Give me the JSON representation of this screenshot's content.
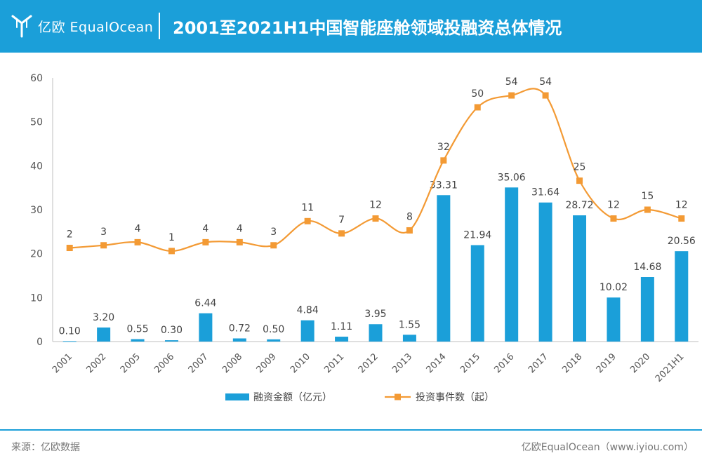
{
  "header": {
    "logo_text": "亿欧 EqualOcean",
    "title": "2001至2021H1中国智能座舱领域投融资总体情况",
    "color": "#1b9fd9"
  },
  "footer": {
    "source": "来源：亿欧数据",
    "credit": "亿欧EqualOcean（www.iyiou.com）"
  },
  "chart_data": {
    "type": "bar",
    "categories": [
      "2001",
      "2002",
      "2005",
      "2006",
      "2007",
      "2008",
      "2009",
      "2010",
      "2011",
      "2012",
      "2013",
      "2014",
      "2015",
      "2016",
      "2017",
      "2018",
      "2019",
      "2020",
      "2021H1"
    ],
    "ylim": [
      0,
      60
    ],
    "yticks": [
      0,
      10,
      20,
      30,
      40,
      50,
      60
    ],
    "grid": false,
    "legend_position": "bottom",
    "series": [
      {
        "name": "融资金额（亿元）",
        "type": "bar",
        "color": "#1b9fd9",
        "values": [
          0.1,
          3.2,
          0.55,
          0.3,
          6.44,
          0.72,
          0.5,
          4.84,
          1.11,
          3.95,
          1.55,
          33.31,
          21.94,
          35.06,
          31.64,
          28.72,
          10.02,
          14.68,
          20.56
        ],
        "labels": [
          "0.10",
          "3.20",
          "0.55",
          "0.30",
          "6.44",
          "0.72",
          "0.50",
          "4.84",
          "1.11",
          "3.95",
          "1.55",
          "33.31",
          "21.94",
          "35.06",
          "31.64",
          "28.72",
          "10.02",
          "14.68",
          "20.56"
        ]
      },
      {
        "name": "投资事件数（起）",
        "type": "line",
        "color": "#f39a34",
        "values": [
          2,
          3,
          4,
          1,
          4,
          4,
          3,
          11,
          7,
          12,
          8,
          32,
          50,
          54,
          54,
          25,
          12,
          15,
          12
        ],
        "positions": [
          21.3,
          21.9,
          22.6,
          20.6,
          22.6,
          22.6,
          21.9,
          27.4,
          24.6,
          28.0,
          25.3,
          41.2,
          53.3,
          56.0,
          56.0,
          36.6,
          28.0,
          30.0,
          28.0
        ]
      }
    ]
  }
}
